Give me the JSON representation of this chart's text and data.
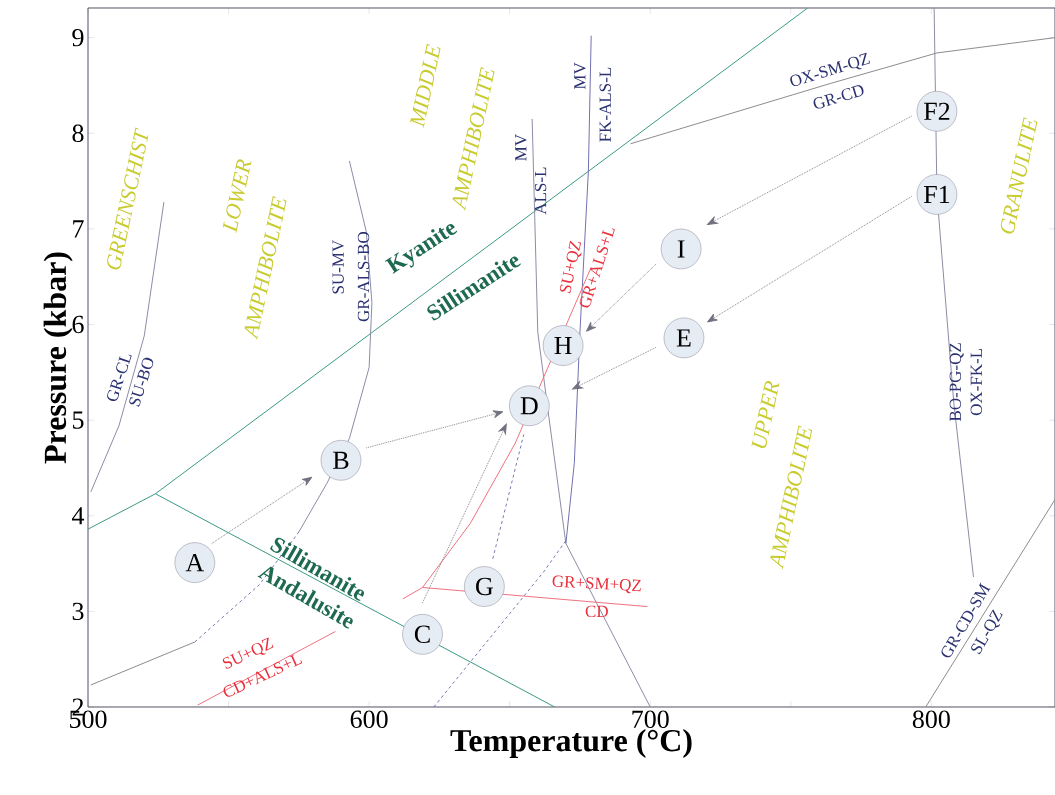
{
  "chart_data": {
    "type": "line",
    "xlabel": "Temperature (°C)",
    "ylabel": "Pressure (kbar)",
    "xlim": [
      500,
      844
    ],
    "ylim": [
      2,
      9.31
    ],
    "xticks": [
      500,
      {
        "value": 550,
        "label": null
      },
      600,
      {
        "value": 650,
        "label": null
      },
      700,
      {
        "value": 750,
        "label": null
      },
      800
    ],
    "yticks": [
      2,
      3,
      4,
      5,
      6,
      7,
      8,
      9
    ],
    "marker": "none",
    "series": [
      {
        "color": "#3a9a86",
        "line_style": "solid",
        "x": [
          500,
          524,
          756
        ],
        "values": [
          3.86,
          4.23,
          9.31
        ]
      },
      {
        "color": "#3a9a86",
        "line_style": "solid",
        "x": [
          524,
          666
        ],
        "values": [
          4.23,
          2.0
        ]
      },
      {
        "color": "#8c8ca6",
        "line_style": "solid",
        "x": [
          501,
          511,
          520,
          527
        ],
        "values": [
          4.25,
          4.94,
          5.88,
          7.28
        ]
      },
      {
        "color": "#8c8c8c",
        "line_style": "solid",
        "x": [
          501,
          538
        ],
        "values": [
          2.23,
          2.68
        ]
      },
      {
        "color": "#6a6aa8",
        "line_style": "dashed",
        "x": [
          538,
          561,
          575
        ],
        "values": [
          2.68,
          3.28,
          3.83
        ]
      },
      {
        "color": "#8c8ca6",
        "line_style": "solid",
        "x": [
          575,
          585,
          593,
          600,
          601,
          599,
          593
        ],
        "values": [
          3.83,
          4.34,
          4.81,
          5.55,
          6.23,
          6.97,
          7.71
        ]
      },
      {
        "color": "#8c8ca6",
        "line_style": "solid",
        "x": [
          658,
          660,
          664,
          670,
          700
        ],
        "values": [
          8.15,
          5.92,
          5.02,
          3.71,
          2.0
        ]
      },
      {
        "color": "#7070b0",
        "line_style": "solid",
        "x": [
          679,
          678,
          675,
          673,
          670
        ],
        "values": [
          9.02,
          7.6,
          5.92,
          4.55,
          3.71
        ]
      },
      {
        "color": "#f07080",
        "line_style": "solid",
        "x": [
          612,
          619,
          636,
          652,
          679
        ],
        "values": [
          3.13,
          3.25,
          3.92,
          4.76,
          6.6
        ]
      },
      {
        "color": "#f07080",
        "line_style": "solid",
        "x": [
          619,
          699
        ],
        "values": [
          3.25,
          3.05
        ]
      },
      {
        "color": "#f07080",
        "line_style": "solid",
        "x": [
          539,
          588
        ],
        "values": [
          2.02,
          2.79
        ]
      },
      {
        "color": "#6a6aa8",
        "line_style": "dashed",
        "x": [
          623,
          662,
          670
        ],
        "values": [
          2.0,
          3.41,
          3.74
        ]
      },
      {
        "color": "#6a6aa8",
        "line_style": "dashed",
        "x": [
          644,
          655
        ],
        "values": [
          3.55,
          4.85
        ]
      },
      {
        "color": "#8c8ca6",
        "line_style": "solid",
        "x": [
          801,
          802,
          808,
          815
        ],
        "values": [
          9.31,
          7.36,
          5.18,
          3.36
        ]
      },
      {
        "color": "#8c8c8c",
        "line_style": "solid",
        "x": [
          693,
          764,
          802,
          844
        ],
        "values": [
          7.89,
          8.52,
          8.84,
          9.0
        ]
      },
      {
        "color": "#8c8c8c",
        "line_style": "solid",
        "x": [
          798,
          844
        ],
        "values": [
          2.0,
          4.17
        ]
      }
    ],
    "annotations": [
      "GREENSCHIST",
      "LOWER",
      "AMPHIBOLITE",
      "MIDDLE",
      "AMPHIBOLITE",
      "UPPER",
      "AMPHIBOLITE",
      "GRANULITE",
      "Kyanite",
      "Sillimanite",
      "Sillimanite",
      "Andalusite",
      "GR-CL",
      "SU-BO",
      "SU-MV",
      "GR-ALS-BO",
      "MV",
      "ALS-L",
      "MV",
      "FK-ALS-L",
      "SU+QZ",
      "GR+ALS+L",
      "OX-SM-QZ",
      "GR-CD",
      "GR+SM+QZ",
      "CD",
      "SU+QZ",
      "CD+ALS+L",
      "BO-PG-QZ",
      "OX-FK-L",
      "GR-CD-SM",
      "SL-QZ",
      {
        "text": "A",
        "x": 538,
        "y": 3.51
      },
      {
        "text": "B",
        "x": 590,
        "y": 4.58
      },
      {
        "text": "C",
        "x": 619,
        "y": 2.76
      },
      {
        "text": "D",
        "x": 657,
        "y": 5.15
      },
      {
        "text": "E",
        "x": 712,
        "y": 5.86
      },
      {
        "text": "F1",
        "x": 802,
        "y": 7.36
      },
      {
        "text": "F2",
        "x": 802,
        "y": 8.23
      },
      {
        "text": "G",
        "x": 641,
        "y": 3.26
      },
      {
        "text": "H",
        "x": 669,
        "y": 5.78
      },
      {
        "text": "I",
        "x": 711,
        "y": 6.79
      }
    ]
  }
}
